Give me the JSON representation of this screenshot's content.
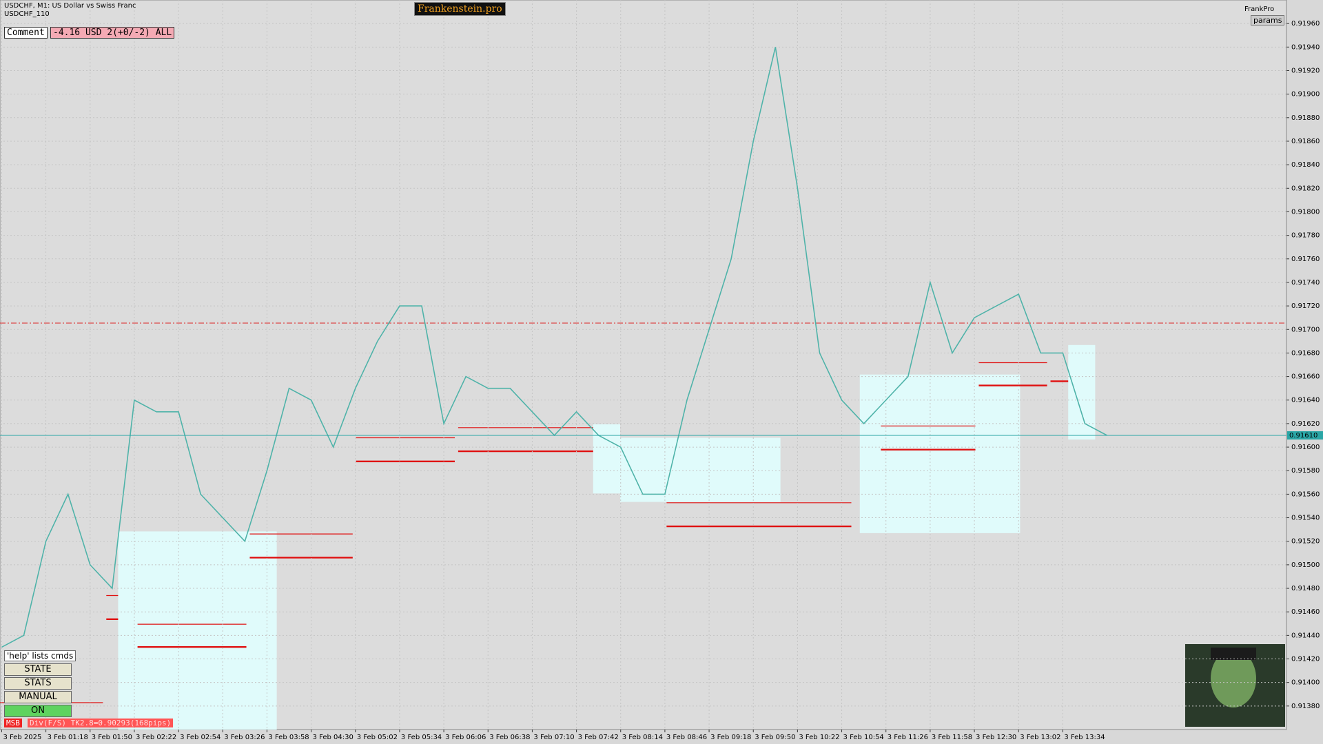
{
  "header": {
    "symbol": "USDCHF, M1:  US Dollar vs Swiss Franc",
    "sub": "USDCHF_110",
    "brand": "Frankenstein.pro",
    "user": "FrankPro",
    "params": "params"
  },
  "panel": {
    "comment_label": "Comment",
    "comment_value": "-4.16 USD 2(+0/-2) ALL",
    "help": "'help' lists cmds",
    "buttons": [
      "STATE",
      "STATS",
      "MANUAL",
      "ON"
    ],
    "msb": "MSB",
    "div": "Div(F/S) TK2.8=0.90293(168pips)"
  },
  "chart_data": {
    "type": "line",
    "categories": [
      "3 Feb 2025",
      null,
      "3 Feb 01:18",
      null,
      "3 Feb 01:50",
      null,
      "3 Feb 02:22",
      null,
      "3 Feb 02:54",
      null,
      "3 Feb 03:26",
      null,
      "3 Feb 03:58",
      null,
      "3 Feb 04:30",
      null,
      "3 Feb 05:02",
      null,
      "3 Feb 05:34",
      null,
      "3 Feb 06:06",
      null,
      "3 Feb 06:38",
      null,
      "3 Feb 07:10",
      null,
      "3 Feb 07:42",
      null,
      "3 Feb 08:14",
      null,
      "3 Feb 08:46",
      null,
      "3 Feb 09:18",
      null,
      "3 Feb 09:50",
      null,
      "3 Feb 10:22",
      null,
      "3 Feb 10:54",
      null,
      "3 Feb 11:26",
      null,
      "3 Feb 11:58",
      null,
      "3 Feb 12:30",
      null,
      "3 Feb 13:02",
      null,
      "3 Feb 13:34",
      null,
      null
    ],
    "series": [
      {
        "name": "USDCHF",
        "color": "#4fb3a9",
        "values": [
          0.9143,
          0.9144,
          0.9152,
          0.9156,
          0.915,
          0.9148,
          0.9164,
          0.9163,
          0.9163,
          0.9156,
          0.9154,
          0.9152,
          0.9158,
          0.9165,
          0.9164,
          0.916,
          0.9165,
          0.9169,
          0.9172,
          0.9172,
          0.9162,
          0.9166,
          0.9165,
          0.9165,
          0.9163,
          0.9161,
          0.9163,
          0.9161,
          0.916,
          0.9156,
          0.9156,
          0.9164,
          0.917,
          0.9176,
          0.9186,
          0.9194,
          0.9182,
          0.9168,
          0.9164,
          0.9162,
          0.9164,
          0.9166,
          0.9174,
          0.9168,
          0.9171,
          0.9172,
          0.9173,
          0.9168,
          0.9168,
          0.9162,
          0.9161
        ]
      }
    ],
    "ylim": [
      0.9136,
      0.9198
    ],
    "yticks": [
      {
        "value": 0.9138,
        "label": "0.91380"
      },
      {
        "value": 0.914,
        "label": "0.91400"
      },
      {
        "value": 0.9142,
        "label": "0.91420"
      },
      {
        "value": 0.9144,
        "label": "0.91440"
      },
      {
        "value": 0.9146,
        "label": "0.91460"
      },
      {
        "value": 0.9148,
        "label": "0.91480"
      },
      {
        "value": 0.915,
        "label": "0.91500"
      },
      {
        "value": 0.9152,
        "label": "0.91520"
      },
      {
        "value": 0.9154,
        "label": "0.91540"
      },
      {
        "value": 0.9156,
        "label": "0.91560"
      },
      {
        "value": 0.9158,
        "label": "0.91580"
      },
      {
        "value": 0.916,
        "label": "0.91600"
      },
      {
        "value": 0.9162,
        "label": "0.91620"
      },
      {
        "value": 0.9164,
        "label": "0.91640"
      },
      {
        "value": 0.9166,
        "label": "0.91660"
      },
      {
        "value": 0.9168,
        "label": "0.91680"
      },
      {
        "value": 0.917,
        "label": "0.91700"
      },
      {
        "value": 0.9172,
        "label": "0.91720"
      },
      {
        "value": 0.9174,
        "label": "0.91740"
      },
      {
        "value": 0.9176,
        "label": "0.91760"
      },
      {
        "value": 0.9178,
        "label": "0.91780"
      },
      {
        "value": 0.918,
        "label": "0.91800"
      },
      {
        "value": 0.9182,
        "label": "0.91820"
      },
      {
        "value": 0.9184,
        "label": "0.91840"
      },
      {
        "value": 0.9186,
        "label": "0.91860"
      },
      {
        "value": 0.9188,
        "label": "0.91880"
      },
      {
        "value": 0.919,
        "label": "0.91900"
      },
      {
        "value": 0.9192,
        "label": "0.91920"
      },
      {
        "value": 0.9194,
        "label": "0.91940"
      },
      {
        "value": 0.9196,
        "label": "0.91960"
      }
    ],
    "current_price": {
      "value": 0.9161,
      "label": "0.91610"
    },
    "grid": true
  }
}
